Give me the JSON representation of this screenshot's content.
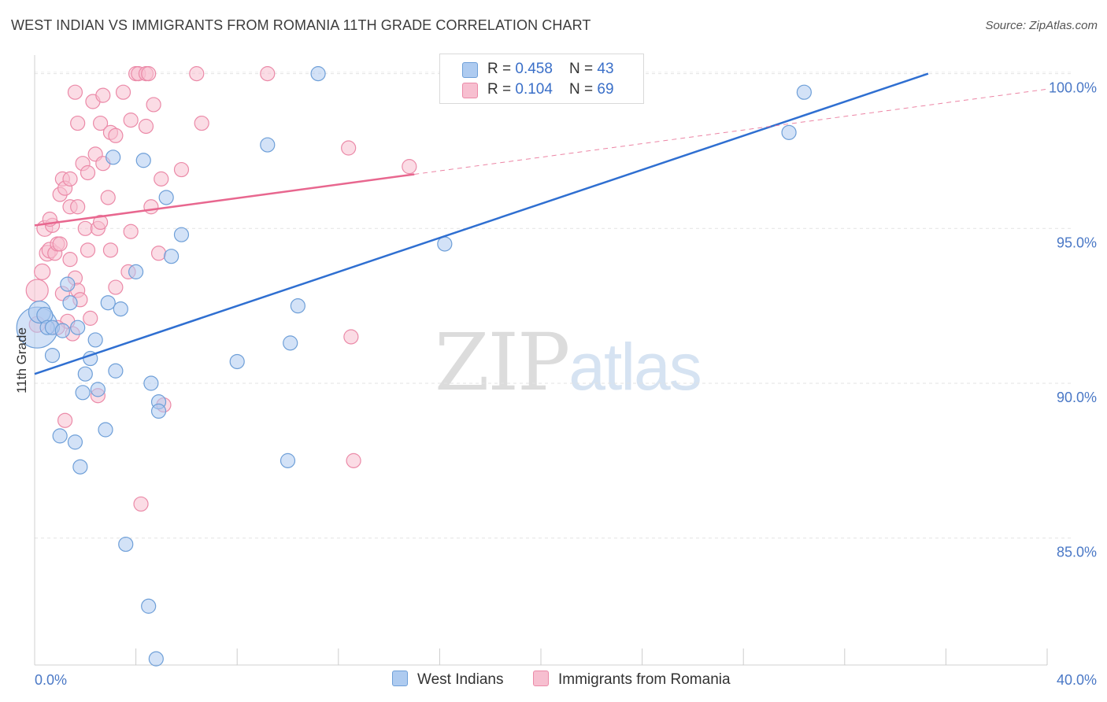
{
  "title": "WEST INDIAN VS IMMIGRANTS FROM ROMANIA 11TH GRADE CORRELATION CHART",
  "source": "Source: ZipAtlas.com",
  "watermark": {
    "zip": "ZIP",
    "atlas": "atlas"
  },
  "colors": {
    "blue_fill": "#aecbf0",
    "blue_stroke": "#6e9fd8",
    "blue_line": "#2f6fd1",
    "pink_fill": "#f7bfd0",
    "pink_stroke": "#eb8aa8",
    "pink_line": "#e8678f",
    "grid": "#e3e3e3",
    "tick_text": "#4a78c6"
  },
  "legend": {
    "rows": [
      {
        "r_label": "R = ",
        "r_value": "0.458",
        "n_label": "N = ",
        "n_value": "43",
        "color": "#aecbf0",
        "border": "#6e9fd8"
      },
      {
        "r_label": "R = ",
        "r_value": "0.104",
        "n_label": "N = ",
        "n_value": "69",
        "color": "#f7bfd0",
        "border": "#eb8aa8"
      }
    ]
  },
  "bottom_legend": [
    {
      "label": "West Indians",
      "color": "#aecbf0",
      "border": "#6e9fd8"
    },
    {
      "label": "Immigrants from Romania",
      "color": "#f7bfd0",
      "border": "#eb8aa8"
    }
  ],
  "chart_data": {
    "type": "scatter",
    "title": "WEST INDIAN VS IMMIGRANTS FROM ROMANIA 11TH GRADE CORRELATION CHART",
    "xlabel": "",
    "ylabel": "11th Grade",
    "xlim": [
      0,
      40
    ],
    "ylim": [
      80.9,
      100.6
    ],
    "x_tick_labels": [
      {
        "value": 0,
        "label": "0.0%"
      },
      {
        "value": 40,
        "label": "40.0%"
      }
    ],
    "x_minor_ticks": [
      4,
      8,
      12,
      16,
      20,
      24,
      28,
      32,
      36,
      40
    ],
    "y_ticks": [
      {
        "value": 85,
        "label": "85.0%"
      },
      {
        "value": 90,
        "label": "90.0%"
      },
      {
        "value": 95,
        "label": "95.0%"
      },
      {
        "value": 100,
        "label": "100.0%"
      }
    ],
    "grid": true,
    "legend": "top-center",
    "series": [
      {
        "name": "West Indians",
        "r": 0.458,
        "n": 43,
        "trend": {
          "x0": 0,
          "y0": 90.3,
          "x1": 35.3,
          "y1": 100.0,
          "solid_to": 35.3
        },
        "points": [
          [
            0.1,
            91.8,
            26
          ],
          [
            0.2,
            92.3,
            14
          ],
          [
            0.4,
            92.2,
            10
          ],
          [
            0.5,
            91.8,
            9
          ],
          [
            0.7,
            91.8,
            9
          ],
          [
            1.1,
            91.7,
            9
          ],
          [
            0.7,
            90.9,
            9
          ],
          [
            1.4,
            92.6,
            9
          ],
          [
            1.7,
            91.8,
            9
          ],
          [
            2.4,
            91.4,
            9
          ],
          [
            1.3,
            93.2,
            9
          ],
          [
            2.2,
            90.8,
            9
          ],
          [
            2.0,
            90.3,
            9
          ],
          [
            1.9,
            89.7,
            9
          ],
          [
            2.5,
            89.8,
            9
          ],
          [
            3.2,
            90.4,
            9
          ],
          [
            2.9,
            92.6,
            9
          ],
          [
            3.4,
            92.4,
            9
          ],
          [
            4.0,
            93.6,
            9
          ],
          [
            5.2,
            96.0,
            9
          ],
          [
            5.4,
            94.1,
            9
          ],
          [
            5.8,
            94.8,
            9
          ],
          [
            3.1,
            97.3,
            9
          ],
          [
            4.3,
            97.2,
            9
          ],
          [
            4.6,
            90.0,
            9
          ],
          [
            4.9,
            89.4,
            9
          ],
          [
            4.9,
            89.1,
            9
          ],
          [
            1.0,
            88.3,
            9
          ],
          [
            1.6,
            88.1,
            9
          ],
          [
            1.8,
            87.3,
            9
          ],
          [
            2.8,
            88.5,
            9
          ],
          [
            3.6,
            84.8,
            9
          ],
          [
            4.5,
            82.8,
            9
          ],
          [
            4.8,
            81.1,
            9
          ],
          [
            8.0,
            90.7,
            9
          ],
          [
            9.2,
            97.7,
            9
          ],
          [
            10.1,
            91.3,
            9
          ],
          [
            10.4,
            92.5,
            9
          ],
          [
            10.0,
            87.5,
            9
          ],
          [
            11.2,
            100.0,
            9
          ],
          [
            16.2,
            94.5,
            9
          ],
          [
            29.8,
            98.1,
            9
          ],
          [
            30.4,
            99.4,
            9
          ]
        ]
      },
      {
        "name": "Immigrants from Romania",
        "r": 0.104,
        "n": 69,
        "trend": {
          "x0": 0,
          "y0": 95.1,
          "x1": 40,
          "y1": 99.5,
          "solid_to": 15.0
        },
        "points": [
          [
            0.1,
            93.0,
            14
          ],
          [
            0.1,
            91.9,
            10
          ],
          [
            0.3,
            93.6,
            10
          ],
          [
            0.4,
            95.0,
            10
          ],
          [
            0.5,
            94.2,
            10
          ],
          [
            0.6,
            94.3,
            10
          ],
          [
            0.7,
            95.1,
            9
          ],
          [
            0.8,
            94.2,
            9
          ],
          [
            0.9,
            94.5,
            9
          ],
          [
            1.0,
            94.5,
            9
          ],
          [
            1.0,
            96.1,
            9
          ],
          [
            1.1,
            96.6,
            9
          ],
          [
            1.2,
            96.3,
            9
          ],
          [
            1.4,
            96.6,
            9
          ],
          [
            1.4,
            95.7,
            9
          ],
          [
            1.4,
            94.0,
            9
          ],
          [
            1.6,
            93.4,
            9
          ],
          [
            1.7,
            93.0,
            9
          ],
          [
            1.8,
            92.7,
            9
          ],
          [
            1.1,
            92.9,
            9
          ],
          [
            1.3,
            92.0,
            9
          ],
          [
            1.5,
            91.6,
            9
          ],
          [
            0.9,
            91.8,
            9
          ],
          [
            1.7,
            95.7,
            9
          ],
          [
            1.9,
            97.1,
            9
          ],
          [
            2.1,
            96.8,
            9
          ],
          [
            2.0,
            95.0,
            9
          ],
          [
            2.1,
            94.3,
            9
          ],
          [
            2.2,
            92.1,
            9
          ],
          [
            2.4,
            97.4,
            9
          ],
          [
            2.5,
            95.0,
            9
          ],
          [
            2.6,
            95.2,
            9
          ],
          [
            2.7,
            97.1,
            9
          ],
          [
            3.0,
            94.3,
            9
          ],
          [
            3.2,
            93.1,
            9
          ],
          [
            2.3,
            99.1,
            9
          ],
          [
            2.7,
            99.3,
            9
          ],
          [
            2.6,
            98.4,
            9
          ],
          [
            3.0,
            98.1,
            9
          ],
          [
            3.2,
            98.0,
            9
          ],
          [
            3.5,
            99.4,
            9
          ],
          [
            3.8,
            98.5,
            9
          ],
          [
            4.4,
            98.3,
            9
          ],
          [
            4.7,
            99.0,
            9
          ],
          [
            1.6,
            99.4,
            9
          ],
          [
            1.7,
            98.4,
            9
          ],
          [
            4.0,
            100.0,
            9
          ],
          [
            4.1,
            100.0,
            9
          ],
          [
            4.4,
            100.0,
            9
          ],
          [
            4.5,
            100.0,
            9
          ],
          [
            6.4,
            100.0,
            9
          ],
          [
            9.2,
            100.0,
            9
          ],
          [
            4.6,
            95.7,
            9
          ],
          [
            4.9,
            94.2,
            9
          ],
          [
            5.0,
            96.6,
            9
          ],
          [
            5.8,
            96.9,
            9
          ],
          [
            6.6,
            98.4,
            9
          ],
          [
            3.7,
            93.6,
            9
          ],
          [
            1.2,
            88.8,
            9
          ],
          [
            2.5,
            89.6,
            9
          ],
          [
            5.1,
            89.3,
            9
          ],
          [
            4.2,
            86.1,
            9
          ],
          [
            12.4,
            97.6,
            9
          ],
          [
            12.5,
            91.5,
            9
          ],
          [
            12.6,
            87.5,
            9
          ],
          [
            14.8,
            97.0,
            9
          ],
          [
            3.8,
            94.9,
            9
          ],
          [
            2.9,
            96.0,
            9
          ],
          [
            0.6,
            95.3,
            9
          ]
        ]
      }
    ]
  }
}
